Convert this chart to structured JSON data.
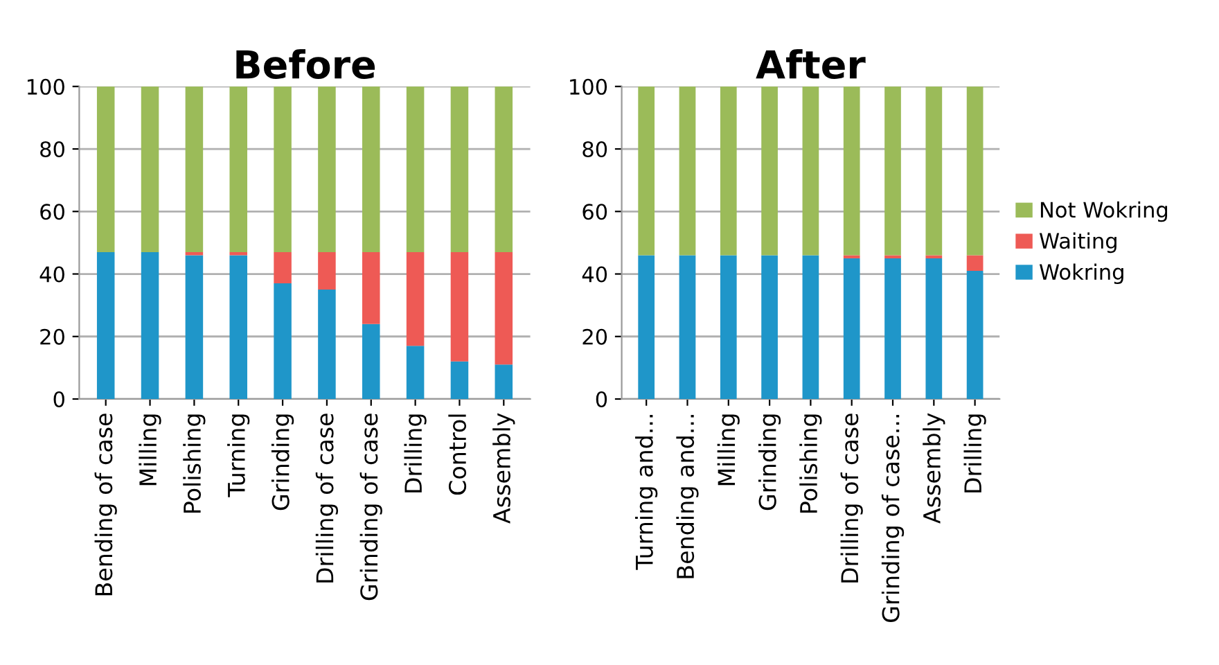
{
  "chart_data": [
    {
      "type": "bar",
      "title": "Before",
      "stacked": true,
      "categories": [
        "Bending of case",
        "Milling",
        "Polishing",
        "Turning",
        "Grinding",
        "Drilling of case",
        "Grinding of case",
        "Drilling",
        "Control",
        "Assembly"
      ],
      "series": [
        {
          "color": "#1f96c9",
          "values": [
            47,
            47,
            46,
            46,
            37,
            35,
            24,
            17,
            12,
            11
          ]
        },
        {
          "color": "#ee5a55",
          "values": [
            0,
            0,
            1,
            1,
            10,
            12,
            23,
            30,
            35,
            36
          ]
        },
        {
          "color": "#9bbb59",
          "values": [
            53,
            53,
            53,
            53,
            53,
            53,
            53,
            53,
            53,
            53
          ]
        }
      ],
      "ylim": [
        0,
        100
      ],
      "yticks": [
        0,
        20,
        40,
        60,
        80,
        100
      ],
      "grid": "y",
      "legend": false
    },
    {
      "type": "bar",
      "title": "After",
      "stacked": true,
      "categories": [
        "Turning and...",
        "Bending and...",
        "Milling",
        "Grinding",
        "Polishing",
        "Drilling of case",
        "Grinding of case...",
        "Assembly",
        "Drilling"
      ],
      "series": [
        {
          "name": "Wokring",
          "color": "#1f96c9",
          "values": [
            46,
            46,
            46,
            46,
            46,
            45,
            45,
            45,
            41
          ]
        },
        {
          "name": "Waiting",
          "color": "#ee5a55",
          "values": [
            0,
            0,
            0,
            0,
            0,
            1,
            1,
            1,
            5
          ]
        },
        {
          "name": "Not Wokring",
          "color": "#9bbb59",
          "values": [
            54,
            54,
            54,
            54,
            54,
            54,
            54,
            54,
            54
          ]
        }
      ],
      "ylim": [
        0,
        100
      ],
      "yticks": [
        0,
        20,
        40,
        60,
        80,
        100
      ],
      "grid": "y",
      "legend": "right"
    }
  ]
}
